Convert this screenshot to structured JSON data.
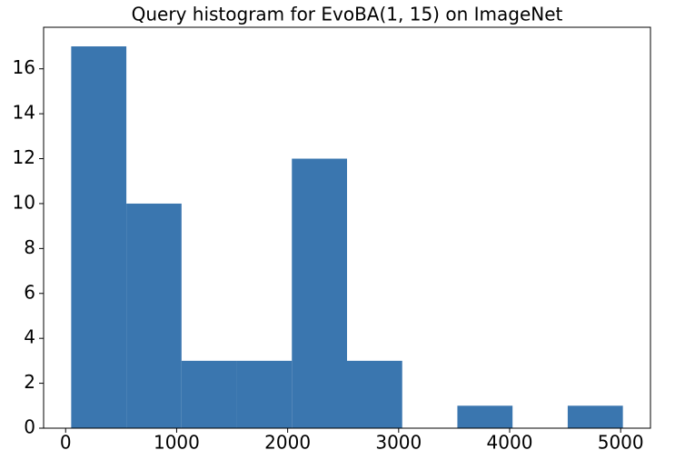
{
  "chart_data": {
    "type": "histogram",
    "title": "Query histogram for EvoBA(1, 15) on ImageNet",
    "bins": [
      50,
      547,
      1044,
      1541,
      2038,
      2535,
      3032,
      3529,
      4026,
      4523,
      5020
    ],
    "values": [
      17,
      10,
      3,
      3,
      12,
      3,
      0,
      1,
      0,
      1
    ],
    "color": "#3a76af",
    "xlim": [
      -198.5,
      5268.5
    ],
    "xticks": [
      0,
      1000,
      2000,
      3000,
      4000,
      5000
    ],
    "ylim": [
      0,
      17.85
    ],
    "yticks": [
      0,
      2,
      4,
      6,
      8,
      10,
      12,
      14,
      16
    ]
  }
}
